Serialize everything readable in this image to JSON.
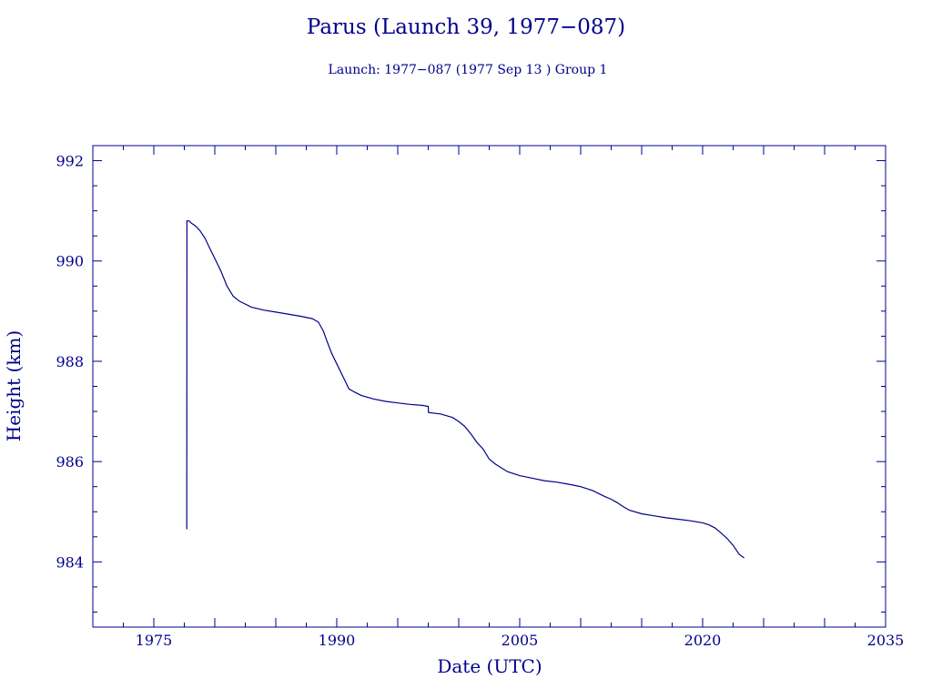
{
  "chart_data": {
    "type": "line",
    "title": "Parus (Launch 39, 1977−087)",
    "subtitle": "Launch: 1977−087  (1977 Sep 13 )  Group 1",
    "xlabel": "Date (UTC)",
    "ylabel": "Height (km)",
    "xlim": [
      1970,
      2035
    ],
    "ylim": [
      982.7,
      992.3
    ],
    "x_ticks": [
      {
        "value": 1975,
        "label": "1975"
      },
      {
        "value": 1990,
        "label": "1990"
      },
      {
        "value": 2005,
        "label": "2005"
      },
      {
        "value": 2020,
        "label": "2020"
      },
      {
        "value": 2035,
        "label": "2035"
      }
    ],
    "y_ticks": [
      {
        "value": 984,
        "label": "984"
      },
      {
        "value": 986,
        "label": "986"
      },
      {
        "value": 988,
        "label": "988"
      },
      {
        "value": 990,
        "label": "990"
      },
      {
        "value": 992,
        "label": "992"
      }
    ],
    "grid": false,
    "color": "#00008b",
    "series": [
      {
        "x": [
          1977.7,
          1977.72,
          1977.9,
          1978.1,
          1978.3,
          1978.5,
          1978.8,
          1979.2,
          1979.6,
          1980.0,
          1980.5,
          1981.0,
          1981.5,
          1982.0,
          1983.0,
          1984.0,
          1985.0,
          1986.0,
          1987.0,
          1988.0,
          1988.5,
          1988.9,
          1989.2,
          1989.6,
          1990.0,
          1990.5,
          1991.0,
          1991.5,
          1992.0,
          1993.0,
          1994.0,
          1995.0,
          1996.0,
          1997.0,
          1997.5,
          1997.52,
          1998.5,
          1999.5,
          2000.0,
          2000.5,
          2001.0,
          2001.5,
          2002.0,
          2002.5,
          2003.0,
          2004.0,
          2005.0,
          2006.0,
          2007.0,
          2008.0,
          2009.0,
          2010.0,
          2011.0,
          2011.5,
          2012.0,
          2012.5,
          2013.0,
          2013.5,
          2014.0,
          2015.0,
          2016.0,
          2017.0,
          2018.0,
          2019.0,
          2019.5,
          2020.0,
          2020.5,
          2021.0,
          2021.5,
          2022.0,
          2022.5,
          2023.0,
          2023.4
        ],
        "y": [
          984.65,
          990.8,
          990.8,
          990.75,
          990.72,
          990.68,
          990.6,
          990.45,
          990.25,
          990.05,
          989.8,
          989.5,
          989.3,
          989.2,
          989.08,
          989.02,
          988.98,
          988.94,
          988.9,
          988.85,
          988.78,
          988.6,
          988.4,
          988.15,
          987.95,
          987.7,
          987.45,
          987.38,
          987.32,
          987.25,
          987.2,
          987.17,
          987.14,
          987.12,
          987.1,
          986.98,
          986.95,
          986.88,
          986.8,
          986.7,
          986.55,
          986.38,
          986.25,
          986.05,
          985.95,
          985.8,
          985.72,
          985.67,
          985.62,
          985.59,
          985.55,
          985.5,
          985.42,
          985.36,
          985.3,
          985.25,
          985.18,
          985.1,
          985.03,
          984.96,
          984.92,
          984.88,
          984.85,
          984.82,
          984.8,
          984.78,
          984.74,
          984.68,
          984.58,
          984.47,
          984.33,
          984.15,
          984.08
        ]
      }
    ]
  }
}
